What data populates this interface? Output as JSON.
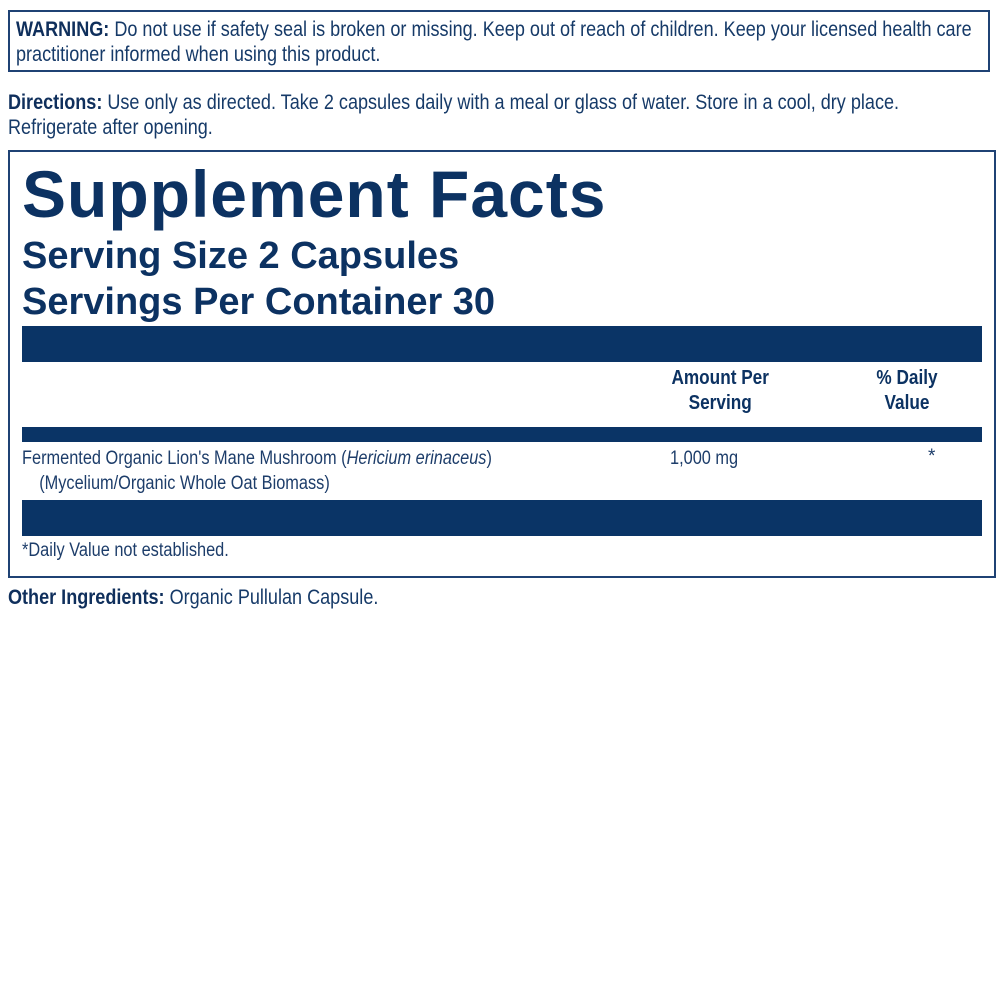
{
  "warning": {
    "label": "WARNING:",
    "text": " Do not use if safety seal is broken or missing. Keep out of reach of children. Keep your licensed health care practitioner informed when using this product."
  },
  "directions": {
    "label": "Directions:",
    "text": " Use only as directed. Take 2 capsules daily with a meal or glass of water. Store in a cool, dry place. Refrigerate after opening."
  },
  "facts": {
    "title": "Supplement Facts",
    "serving_size": "Serving Size 2 Capsules",
    "servings_per_container": "Servings Per Container 30",
    "col_amount": [
      "Amount Per",
      "Serving"
    ],
    "col_dv": [
      "% Daily",
      "Value"
    ],
    "rows": [
      {
        "name": "Fermented Organic Lion's Mane Mushroom (",
        "latin": "Hericium erinaceus",
        "close": ")",
        "sub": "(Mycelium/Organic Whole Oat Biomass)",
        "amount": "1,000 mg",
        "dv": "*"
      }
    ],
    "footnote": "*Daily Value not established."
  },
  "other": {
    "label": "Other Ingredients:",
    "text": " Organic Pullulan Capsule."
  },
  "colors": {
    "navy": "#0a3466",
    "text": "#163a68"
  }
}
